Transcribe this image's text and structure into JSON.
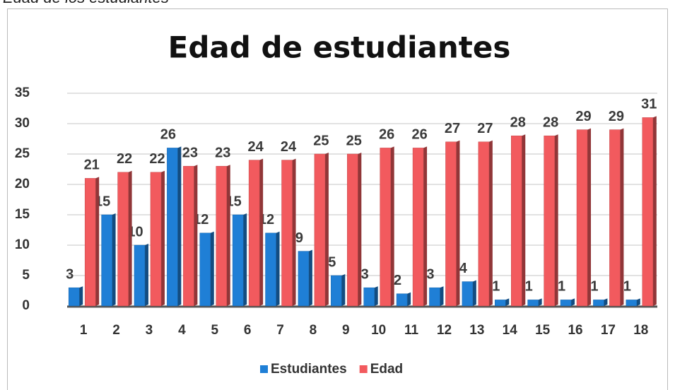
{
  "caption": "Edad de los estudiantes",
  "chart_data": {
    "type": "bar",
    "title": "Edad de estudiantes",
    "categories": [
      "1",
      "2",
      "3",
      "4",
      "5",
      "6",
      "7",
      "8",
      "9",
      "10",
      "11",
      "12",
      "13",
      "14",
      "15",
      "16",
      "17",
      "18"
    ],
    "series": [
      {
        "name": "Estudiantes",
        "color": "#1f7fd6",
        "values": [
          3,
          15,
          10,
          26,
          12,
          15,
          12,
          9,
          5,
          3,
          2,
          3,
          4,
          1,
          1,
          1,
          1,
          1
        ]
      },
      {
        "name": "Edad",
        "color": "#f25a5e",
        "values": [
          21,
          22,
          22,
          23,
          23,
          24,
          24,
          25,
          25,
          26,
          26,
          27,
          27,
          28,
          28,
          29,
          29,
          31
        ]
      }
    ],
    "ylim": [
      0,
      35
    ],
    "yticks": [
      0,
      5,
      10,
      15,
      20,
      25,
      30,
      35
    ],
    "grid": true,
    "legend": "bottom"
  }
}
